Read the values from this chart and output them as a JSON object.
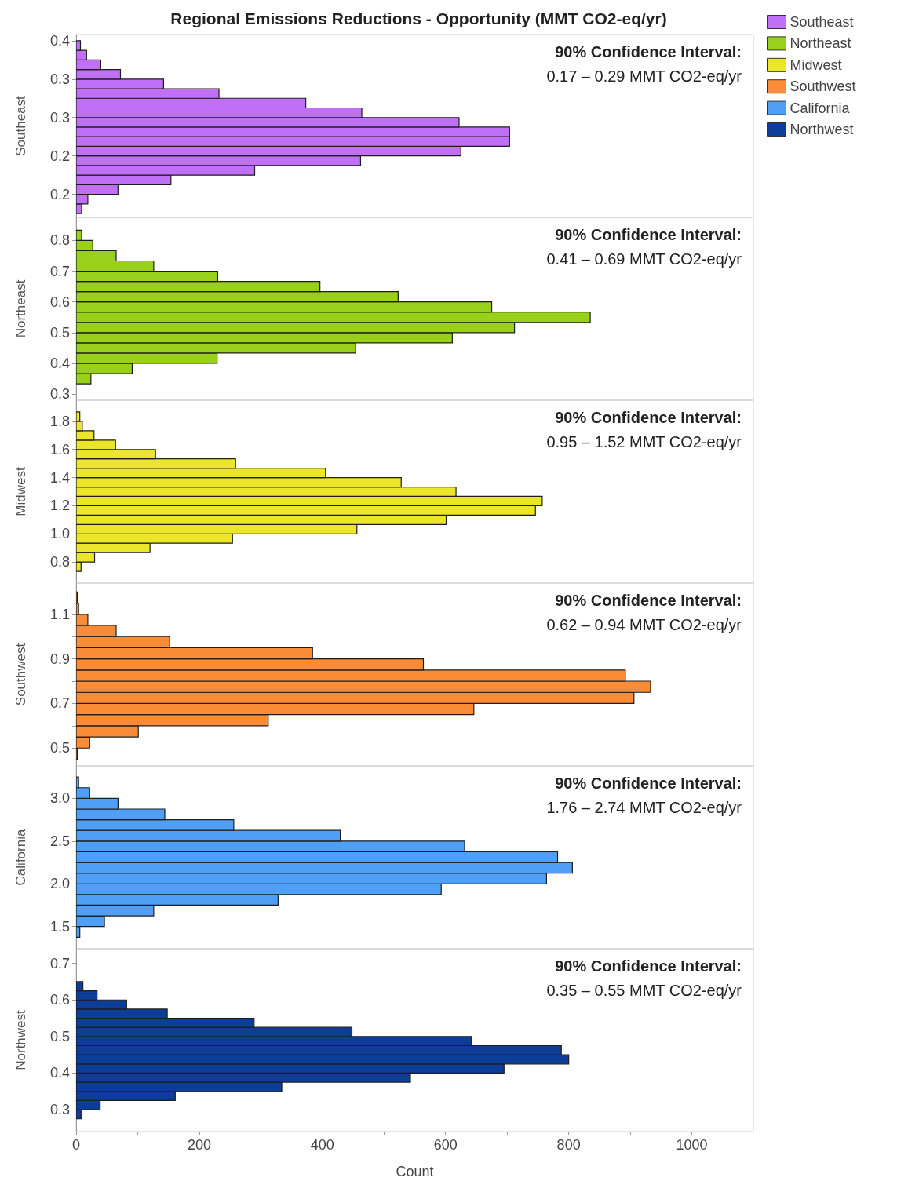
{
  "chart_data": [
    {
      "type": "histogram",
      "orientation": "horizontal",
      "title": "Regional Emissions Reductions - Opportunity (MMT CO2-eq/yr)",
      "ylabel": "Southeast",
      "legend": "top right",
      "tick_labels": "y",
      "annotations": [
        "90% Confidence Interval:",
        "0.17 – 0.29 MMT CO2-eq/yr"
      ],
      "bins": [
        0.125,
        0.1375,
        0.15,
        0.1625,
        0.175,
        0.1875,
        0.2,
        0.2125,
        0.225,
        0.2375,
        0.25,
        0.2625,
        0.275,
        0.2875,
        0.3,
        0.3125,
        0.325,
        0.3375,
        0.35
      ],
      "series": [
        {
          "name": "Southeast",
          "color": "#bf70f5",
          "values": [
            9,
            19,
            68,
            154,
            290,
            462,
            625,
            704,
            704,
            622,
            464,
            373,
            232,
            142,
            72,
            40,
            17,
            7
          ]
        }
      ],
      "xlim": [
        0,
        1100
      ],
      "ylim": [
        0.12,
        0.358
      ],
      "yticks": [
        {
          "value": 0.15,
          "label": "0.2"
        },
        {
          "value": 0.2,
          "label": "0.2"
        },
        {
          "value": 0.25,
          "label": "0.3"
        },
        {
          "value": 0.3,
          "label": "0.3"
        },
        {
          "value": 0.35,
          "label": "0.4"
        }
      ]
    },
    {
      "type": "histogram",
      "orientation": "horizontal",
      "ylabel": "Northeast",
      "legend": "top right",
      "tick_labels": "y",
      "annotations": [
        "90% Confidence Interval:",
        "0.41 – 0.69 MMT CO2-eq/yr"
      ],
      "bins": [
        0.3333,
        0.3667,
        0.4,
        0.4333,
        0.4667,
        0.5,
        0.5333,
        0.5667,
        0.6,
        0.6333,
        0.6667,
        0.7,
        0.7333,
        0.7667,
        0.8,
        0.8333
      ],
      "series": [
        {
          "name": "Northeast",
          "color": "#99d11a",
          "values": [
            24,
            91,
            229,
            454,
            611,
            712,
            835,
            675,
            523,
            396,
            230,
            126,
            65,
            27,
            9
          ]
        }
      ],
      "xlim": [
        0,
        1100
      ],
      "ylim": [
        0.28,
        0.875
      ],
      "yticks": [
        0.3,
        0.4,
        0.5,
        0.6,
        0.7,
        0.8
      ]
    },
    {
      "type": "histogram",
      "orientation": "horizontal",
      "ylabel": "Midwest",
      "legend": "top right",
      "tick_labels": "y",
      "annotations": [
        "90% Confidence Interval:",
        "0.95 – 1.52 MMT CO2-eq/yr"
      ],
      "bins": [
        0.7333,
        0.8,
        0.8667,
        0.9333,
        1.0,
        1.0667,
        1.1333,
        1.2,
        1.2667,
        1.3333,
        1.4,
        1.4667,
        1.5333,
        1.6,
        1.6667,
        1.7333,
        1.8,
        1.8667
      ],
      "series": [
        {
          "name": "Midwest",
          "color": "#ebe62a",
          "values": [
            8,
            30,
            120,
            254,
            456,
            601,
            746,
            757,
            617,
            528,
            405,
            259,
            129,
            64,
            29,
            10,
            6
          ]
        }
      ],
      "xlim": [
        0,
        1100
      ],
      "ylim": [
        0.65,
        1.95
      ],
      "yticks": [
        0.8,
        {
          "value": 1,
          "label": "1.0"
        },
        1.2,
        1.4,
        1.6,
        1.8
      ]
    },
    {
      "type": "histogram",
      "orientation": "horizontal",
      "ylabel": "Southwest",
      "legend": "top right",
      "tick_labels": "y",
      "annotations": [
        "90% Confidence Interval:",
        "0.62 – 0.94 MMT CO2-eq/yr"
      ],
      "bins": [
        0.45,
        0.5,
        0.55,
        0.6,
        0.65,
        0.7,
        0.75,
        0.8,
        0.85,
        0.9,
        0.95,
        1.0,
        1.05,
        1.1,
        1.15,
        1.2
      ],
      "series": [
        {
          "name": "Southwest",
          "color": "#fa8c37",
          "values": [
            2,
            22,
            101,
            312,
            646,
            906,
            933,
            892,
            564,
            384,
            152,
            65,
            19,
            4,
            2
          ]
        }
      ],
      "xlim": [
        0,
        1100
      ],
      "ylim": [
        0.42,
        1.24
      ],
      "yticks": [
        0.5,
        {
          "value": 0.6,
          "label": null
        },
        0.7,
        {
          "value": 0.8,
          "label": null
        },
        0.9,
        {
          "value": 1,
          "label": null
        },
        1.1
      ]
    },
    {
      "type": "histogram",
      "orientation": "horizontal",
      "ylabel": "California",
      "legend": "top right",
      "tick_labels": "y",
      "annotations": [
        "90% Confidence Interval:",
        "1.76 – 2.74 MMT CO2-eq/yr"
      ],
      "bins": [
        1.375,
        1.5,
        1.625,
        1.75,
        1.875,
        2,
        2.125,
        2.25,
        2.375,
        2.5,
        2.625,
        2.75,
        2.875,
        3,
        3.125,
        3.25
      ],
      "series": [
        {
          "name": "California",
          "color": "#4e9ff5",
          "values": [
            6,
            46,
            126,
            328,
            593,
            764,
            806,
            782,
            631,
            429,
            256,
            144,
            68,
            22,
            4
          ]
        }
      ],
      "xlim": [
        0,
        1100
      ],
      "ylim": [
        1.24,
        3.38
      ],
      "yticks": [
        1.5,
        {
          "value": 2,
          "label": "2.0"
        },
        2.5,
        {
          "value": 3,
          "label": "3.0"
        }
      ]
    },
    {
      "type": "histogram",
      "orientation": "horizontal",
      "ylabel": "Northwest",
      "xlabel": "Count",
      "legend": "top right",
      "annotations": [
        "90% Confidence Interval:",
        "0.35 – 0.55 MMT CO2-eq/yr"
      ],
      "bins": [
        0.275,
        0.3,
        0.325,
        0.35,
        0.375,
        0.4,
        0.425,
        0.45,
        0.475,
        0.5,
        0.525,
        0.55,
        0.575,
        0.6,
        0.625,
        0.65
      ],
      "series": [
        {
          "name": "Northwest",
          "color": "#0c3d99",
          "values": [
            8,
            39,
            161,
            334,
            543,
            695,
            800,
            788,
            642,
            448,
            289,
            148,
            82,
            34,
            11
          ]
        }
      ],
      "xlim": [
        0,
        1100
      ],
      "xticks": [
        0,
        {
          "value": 100,
          "label": null
        },
        200,
        {
          "value": 300,
          "label": null
        },
        400,
        {
          "value": 500,
          "label": null
        },
        600,
        {
          "value": 700,
          "label": null
        },
        800,
        {
          "value": 900,
          "label": null
        },
        1000
      ],
      "ylim": [
        0.24,
        0.74
      ],
      "yticks": [
        0.3,
        0.4,
        0.5,
        0.6,
        0.7
      ]
    }
  ]
}
